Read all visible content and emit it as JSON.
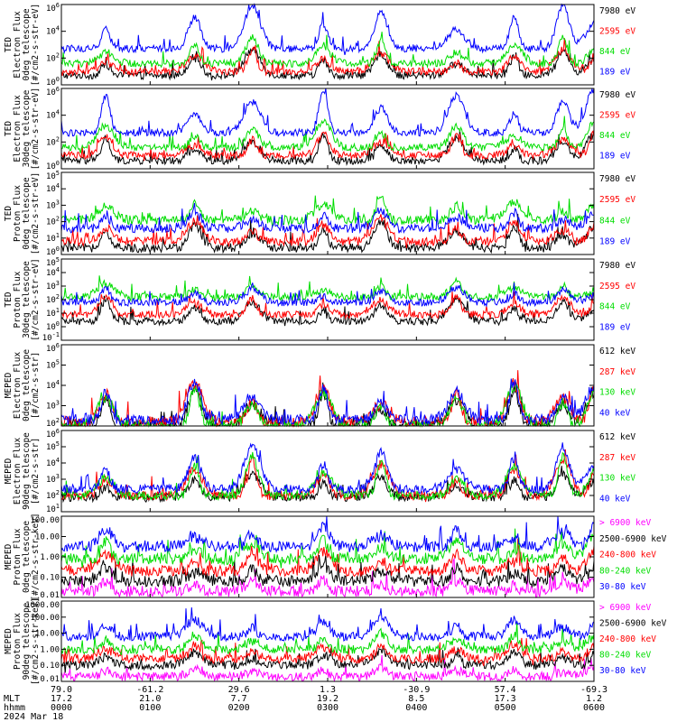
{
  "chart_data": [
    {
      "type": "line",
      "ylabel": [
        "TED",
        "Electron Flux",
        "0deg telescope",
        "[#/cm2-s-str-eV]"
      ],
      "log": true,
      "ylim": [
        1,
        1000000
      ],
      "yticks": [
        {
          "p": 0,
          "label": "10^0"
        },
        {
          "p": 2,
          "label": "10^2"
        },
        {
          "p": 4,
          "label": "10^4"
        },
        {
          "p": 6,
          "label": "10^6"
        }
      ],
      "series": [
        {
          "name": "7980 eV",
          "color": "#000000",
          "base": 0.7,
          "hi": 1.9
        },
        {
          "name": "2595 eV",
          "color": "#ff0000",
          "base": 1.0,
          "hi": 1.6
        },
        {
          "name": "844 eV",
          "color": "#00dd00",
          "base": 1.6,
          "hi": 1.9
        },
        {
          "name": "189 eV",
          "color": "#0000ff",
          "base": 2.7,
          "hi": 3.2
        }
      ]
    },
    {
      "type": "line",
      "ylabel": [
        "TED",
        "Electron Flux",
        "30deg telescope",
        "[#/cm2-s-str-eV]"
      ],
      "log": true,
      "ylim": [
        1,
        1000000
      ],
      "yticks": [
        {
          "p": 0,
          "label": "10^0"
        },
        {
          "p": 2,
          "label": "10^2"
        },
        {
          "p": 4,
          "label": "10^4"
        },
        {
          "p": 6,
          "label": "10^6"
        }
      ],
      "series": [
        {
          "name": "7980 eV",
          "color": "#000000",
          "base": 0.6,
          "hi": 1.9
        },
        {
          "name": "2595 eV",
          "color": "#ff0000",
          "base": 1.0,
          "hi": 1.6
        },
        {
          "name": "844 eV",
          "color": "#00dd00",
          "base": 1.6,
          "hi": 1.9
        },
        {
          "name": "189 eV",
          "color": "#0000ff",
          "base": 2.7,
          "hi": 3.2
        }
      ]
    },
    {
      "type": "line",
      "ylabel": [
        "TED",
        "Proton Flux",
        "0deg telescope",
        "[#/cm2-s-str-eV]"
      ],
      "log": true,
      "ylim": [
        1,
        100000
      ],
      "yticks": [
        {
          "p": 0,
          "label": "10^0"
        },
        {
          "p": 1,
          "label": "10^1"
        },
        {
          "p": 2,
          "label": "10^2"
        },
        {
          "p": 3,
          "label": "10^3"
        },
        {
          "p": 4,
          "label": "10^4"
        },
        {
          "p": 5,
          "label": "10^5"
        }
      ],
      "series": [
        {
          "name": "7980 eV",
          "color": "#000000",
          "base": 0.4,
          "hi": 1.6
        },
        {
          "name": "2595 eV",
          "color": "#ff0000",
          "base": 0.8,
          "hi": 1.4
        },
        {
          "name": "844 eV",
          "color": "#00dd00",
          "base": 2.1,
          "hi": 1.3
        },
        {
          "name": "189 eV",
          "color": "#0000ff",
          "base": 1.6,
          "hi": 1.1
        }
      ]
    },
    {
      "type": "line",
      "ylabel": [
        "TED",
        "Proton Flux",
        "30deg telescope",
        "[#/cm2-s-str-eV]"
      ],
      "log": true,
      "ylim": [
        0.1,
        100000
      ],
      "yticks": [
        {
          "p": -1,
          "label": "10^-1"
        },
        {
          "p": 0,
          "label": "10^0"
        },
        {
          "p": 1,
          "label": "10^1"
        },
        {
          "p": 2,
          "label": "10^2"
        },
        {
          "p": 3,
          "label": "10^3"
        },
        {
          "p": 4,
          "label": "10^4"
        },
        {
          "p": 5,
          "label": "10^5"
        }
      ],
      "series": [
        {
          "name": "7980 eV",
          "color": "#000000",
          "base": 0.4,
          "hi": 1.6
        },
        {
          "name": "2595 eV",
          "color": "#ff0000",
          "base": 0.9,
          "hi": 1.4
        },
        {
          "name": "844 eV",
          "color": "#00dd00",
          "base": 2.2,
          "hi": 1.0
        },
        {
          "name": "189 eV",
          "color": "#0000ff",
          "base": 1.8,
          "hi": 1.1
        }
      ]
    },
    {
      "type": "line",
      "ylabel": [
        "MEPED",
        "Electron Flux",
        "0deg telescope",
        "[#/cm2-s-str]"
      ],
      "log": true,
      "ylim": [
        100,
        1000000
      ],
      "yticks": [
        {
          "p": 2,
          "label": "10^2"
        },
        {
          "p": 3,
          "label": "10^3"
        },
        {
          "p": 4,
          "label": "10^4"
        },
        {
          "p": 5,
          "label": "10^5"
        },
        {
          "p": 6,
          "label": "10^6"
        }
      ],
      "series": [
        {
          "name": "612 keV",
          "color": "#000000",
          "base": 2.0,
          "hi": 1.8
        },
        {
          "name": "287 keV",
          "color": "#ff0000",
          "base": 2.2,
          "hi": 1.9
        },
        {
          "name": "130 keV",
          "color": "#00dd00",
          "base": 2.0,
          "hi": 1.9
        },
        {
          "name": "40 keV",
          "color": "#0000ff",
          "base": 2.3,
          "hi": 1.9
        }
      ]
    },
    {
      "type": "line",
      "ylabel": [
        "MEPED",
        "Electron Flux",
        "90deg telescope",
        "[#/cm2-s-str]"
      ],
      "log": true,
      "ylim": [
        10,
        1000000
      ],
      "yticks": [
        {
          "p": 1,
          "label": "10^1"
        },
        {
          "p": 2,
          "label": "10^2"
        },
        {
          "p": 3,
          "label": "10^3"
        },
        {
          "p": 4,
          "label": "10^4"
        },
        {
          "p": 5,
          "label": "10^5"
        },
        {
          "p": 6,
          "label": "10^6"
        }
      ],
      "series": [
        {
          "name": "612 keV",
          "color": "#000000",
          "base": 1.9,
          "hi": 1.4
        },
        {
          "name": "287 keV",
          "color": "#ff0000",
          "base": 2.0,
          "hi": 2.2
        },
        {
          "name": "130 keV",
          "color": "#00dd00",
          "base": 2.0,
          "hi": 2.4
        },
        {
          "name": "40 keV",
          "color": "#0000ff",
          "base": 2.4,
          "hi": 2.6
        }
      ]
    },
    {
      "type": "line",
      "ylabel": [
        "MEPED",
        "Proton Flux",
        "0deg telescope",
        "[#/cm2-s-str-keV]"
      ],
      "log": true,
      "ylim": [
        0.01,
        100
      ],
      "yticks": [
        {
          "p": -2,
          "label": "0.01"
        },
        {
          "p": -1,
          "label": "0.10"
        },
        {
          "p": 0,
          "label": "1.00"
        },
        {
          "p": 1,
          "label": "10.00"
        },
        {
          "p": 2,
          "label": "100.00"
        }
      ],
      "series": [
        {
          "name": "> 6900 keV",
          "color": "#ff00ff",
          "base": -1.7,
          "hi": 0.6
        },
        {
          "name": "2500-6900 keV",
          "color": "#000000",
          "base": -1.2,
          "hi": 0.8
        },
        {
          "name": "240-800 keV",
          "color": "#ff0000",
          "base": -0.7,
          "hi": 1.0
        },
        {
          "name": "80-240 keV",
          "color": "#00dd00",
          "base": -0.1,
          "hi": 1.0
        },
        {
          "name": "30-80 keV",
          "color": "#0000ff",
          "base": 0.5,
          "hi": 1.0
        }
      ]
    },
    {
      "type": "line",
      "ylabel": [
        "MEPED",
        "Proton Flux",
        "90deg telescope",
        "[#/cm2-s-str-keV]"
      ],
      "log": true,
      "ylim": [
        0.01,
        1000
      ],
      "yticks": [
        {
          "p": -2,
          "label": "0.01"
        },
        {
          "p": -1,
          "label": "0.10"
        },
        {
          "p": 0,
          "label": "1.00"
        },
        {
          "p": 1,
          "label": "10.00"
        },
        {
          "p": 2,
          "label": "100.00"
        },
        {
          "p": 3,
          "label": "1000.00"
        }
      ],
      "series": [
        {
          "name": "> 6900 keV",
          "color": "#ff00ff",
          "base": -1.7,
          "hi": 0.6
        },
        {
          "name": "2500-6900 keV",
          "color": "#000000",
          "base": -1.0,
          "hi": 0.9
        },
        {
          "name": "240-800 keV",
          "color": "#ff0000",
          "base": -0.6,
          "hi": 1.0
        },
        {
          "name": "80-240 keV",
          "color": "#00dd00",
          "base": 0.0,
          "hi": 1.0
        },
        {
          "name": "30-80 keV",
          "color": "#0000ff",
          "base": 0.8,
          "hi": 1.2
        }
      ]
    }
  ],
  "footer": {
    "row_labels": [
      "MLT",
      "hhmm"
    ],
    "date": "2024 Mar 18",
    "ticks": [
      {
        "t": 0.0,
        "lat": "79.0",
        "mlt": "17.2",
        "hhmm": "0000"
      },
      {
        "t": 1.0,
        "lat": "-61.2",
        "mlt": "21.0",
        "hhmm": "0100"
      },
      {
        "t": 2.0,
        "lat": "29.6",
        "mlt": "7.7",
        "hhmm": "0200"
      },
      {
        "t": 3.0,
        "lat": "1.3",
        "mlt": "19.2",
        "hhmm": "0300"
      },
      {
        "t": 4.0,
        "lat": "-30.9",
        "mlt": "8.5",
        "hhmm": "0400"
      },
      {
        "t": 5.0,
        "lat": "57.4",
        "mlt": "17.3",
        "hhmm": "0500"
      },
      {
        "t": 6.0,
        "lat": "-69.3",
        "mlt": "1.2",
        "hhmm": "0600"
      }
    ],
    "xlim_hours": [
      0,
      6
    ]
  },
  "bursts_hours": [
    0.5,
    1.5,
    2.15,
    2.95,
    3.6,
    4.45,
    5.1,
    5.65,
    6.0
  ]
}
